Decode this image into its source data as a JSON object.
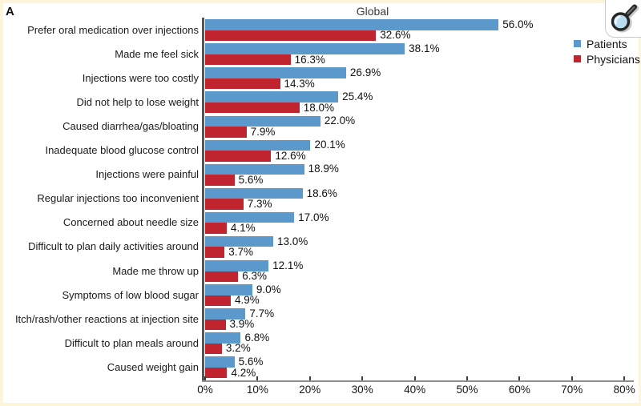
{
  "figure_label": "A",
  "zoom_button": {
    "icon": "magnifier"
  },
  "colors": {
    "patients": "#5b99cd",
    "physicians": "#c0242e",
    "frame_background": "#fcf5da",
    "panel_background": "#ffffff",
    "y_axis": "#555555",
    "x_axis": "#8f8f8f"
  },
  "chart_data": {
    "type": "bar",
    "orientation": "horizontal",
    "title": "Global",
    "xlabel": "",
    "ylabel": "",
    "xlim": [
      0,
      80
    ],
    "grid": false,
    "legend_position": "right",
    "x_ticks": [
      "0%",
      "10%",
      "20%",
      "30%",
      "40%",
      "50%",
      "60%",
      "70%",
      "80%"
    ],
    "categories": [
      "Prefer oral medication over injections",
      "Made me feel sick",
      "Injections were too costly",
      "Did not help to lose weight",
      "Caused diarrhea/gas/bloating",
      "Inadequate blood glucose control",
      "Injections were painful",
      "Regular injections too inconvenient",
      "Concerned about needle size",
      "Difficult to plan daily activities around",
      "Made me throw up",
      "Symptoms of low blood sugar",
      "Itch/rash/other reactions at injection site",
      "Difficult to plan meals around",
      "Caused weight gain"
    ],
    "series": [
      {
        "name": "Patients",
        "color": "#5b99cd",
        "values": [
          56.0,
          38.1,
          26.9,
          25.4,
          22.0,
          20.1,
          18.9,
          18.6,
          17.0,
          13.0,
          12.1,
          9.0,
          7.7,
          6.8,
          5.6
        ],
        "labels": [
          "56.0%",
          "38.1%",
          "26.9%",
          "25.4%",
          "22.0%",
          "20.1%",
          "18.9%",
          "18.6%",
          "17.0%",
          "13.0%",
          "12.1%",
          "9.0%",
          "7.7%",
          "6.8%",
          "5.6%"
        ]
      },
      {
        "name": "Physicians",
        "color": "#c0242e",
        "values": [
          32.6,
          16.3,
          14.3,
          18.0,
          7.9,
          12.6,
          5.6,
          7.3,
          4.1,
          3.7,
          6.3,
          4.9,
          3.9,
          3.2,
          4.2
        ],
        "labels": [
          "32.6%",
          "16.3%",
          "14.3%",
          "18.0%",
          "7.9%",
          "12.6%",
          "5.6%",
          "7.3%",
          "4.1%",
          "3.7%",
          "6.3%",
          "4.9%",
          "3.9%",
          "3.2%",
          "4.2%"
        ]
      }
    ]
  }
}
